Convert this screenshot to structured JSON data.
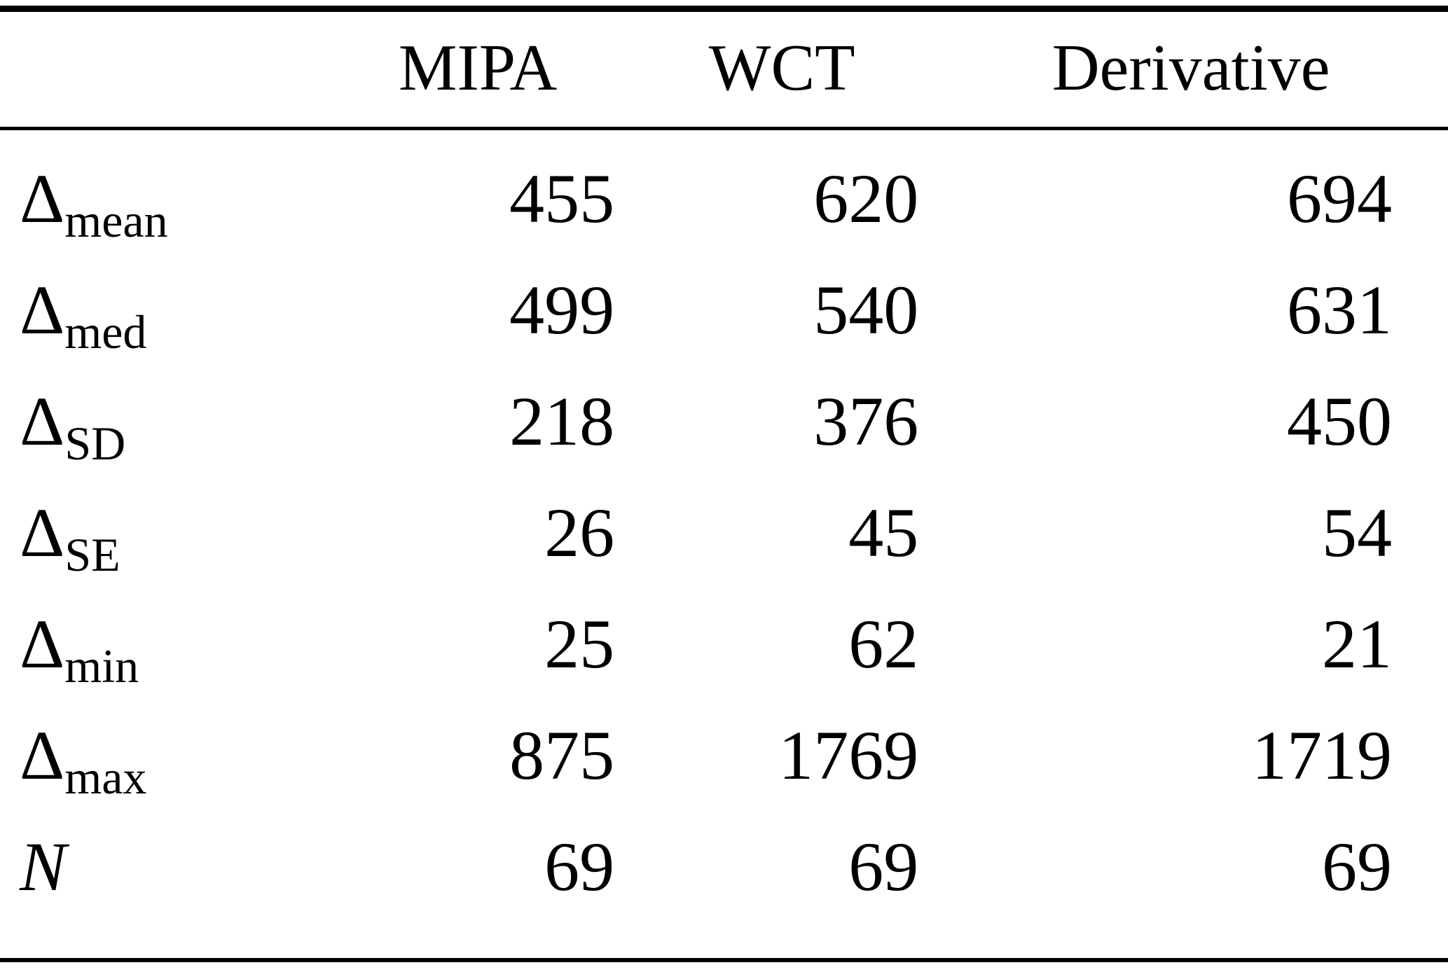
{
  "table": {
    "columns": [
      "",
      "MIPA",
      "WCT",
      "Derivative"
    ],
    "rows": [
      {
        "label_base": "Δ",
        "label_sub": "mean",
        "values": [
          "455",
          "620",
          "694"
        ]
      },
      {
        "label_base": "Δ",
        "label_sub": "med",
        "values": [
          "499",
          "540",
          "631"
        ]
      },
      {
        "label_base": "Δ",
        "label_sub": "SD",
        "values": [
          "218",
          "376",
          "450"
        ]
      },
      {
        "label_base": "Δ",
        "label_sub": "SE",
        "values": [
          "26",
          "45",
          "54"
        ]
      },
      {
        "label_base": "Δ",
        "label_sub": "min",
        "values": [
          "25",
          "62",
          "21"
        ]
      },
      {
        "label_base": "Δ",
        "label_sub": "max",
        "values": [
          "875",
          "1769",
          "1719"
        ]
      },
      {
        "label_base": "N",
        "label_sub": "",
        "values": [
          "69",
          "69",
          "69"
        ]
      }
    ]
  }
}
